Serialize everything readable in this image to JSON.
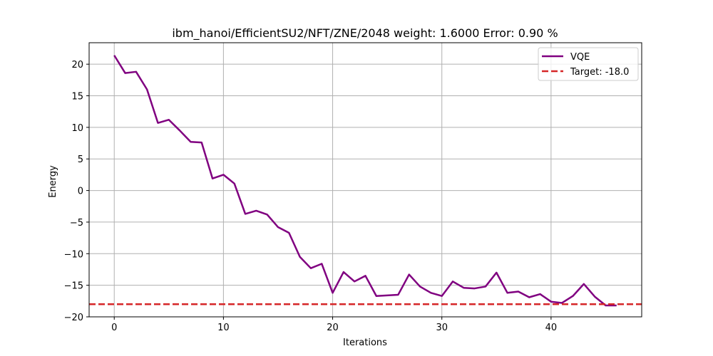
{
  "chart_data": {
    "type": "line",
    "title": "ibm_hanoi/EfficientSU2/NFT/ZNE/2048 weight: 1.6000 Error: 0.90 %",
    "xlabel": "Iterations",
    "ylabel": "Energy",
    "xlim": [
      -2.3,
      48.3
    ],
    "ylim": [
      -20,
      23.4
    ],
    "grid": true,
    "legend_position": "top-right",
    "xticks": [
      0,
      10,
      20,
      30,
      40
    ],
    "yticks": [
      20,
      15,
      10,
      5,
      0,
      -5,
      -10,
      -15,
      -20
    ],
    "ytick_labels": [
      "20",
      "15",
      "10",
      "5",
      "0",
      "−5",
      "−10",
      "−15",
      "−20"
    ],
    "series": [
      {
        "name": "VQE",
        "color": "#800080",
        "style": "solid",
        "x": [
          0,
          1,
          2,
          3,
          4,
          5,
          6,
          7,
          8,
          9,
          10,
          11,
          12,
          13,
          14,
          15,
          16,
          17,
          18,
          19,
          20,
          21,
          22,
          23,
          24,
          25,
          26,
          27,
          28,
          29,
          30,
          31,
          32,
          33,
          34,
          35,
          36,
          37,
          38,
          39,
          40,
          41,
          42,
          43,
          44,
          45,
          46
        ],
        "values": [
          21.4,
          18.6,
          18.8,
          16.0,
          10.7,
          11.2,
          9.5,
          7.7,
          7.6,
          1.9,
          2.5,
          1.1,
          -3.7,
          -3.2,
          -3.8,
          -5.8,
          -6.7,
          -10.5,
          -12.3,
          -11.6,
          -16.2,
          -12.9,
          -14.4,
          -13.5,
          -16.7,
          -16.6,
          -16.5,
          -13.3,
          -15.2,
          -16.2,
          -16.7,
          -14.4,
          -15.4,
          -15.5,
          -15.2,
          -13.0,
          -16.2,
          -16.0,
          -16.9,
          -16.4,
          -17.6,
          -17.8,
          -16.7,
          -14.8,
          -16.8,
          -18.2,
          -18.2
        ]
      },
      {
        "name": "Target: -18.0",
        "color": "#d62728",
        "style": "dashed",
        "value": -18.0
      }
    ]
  }
}
